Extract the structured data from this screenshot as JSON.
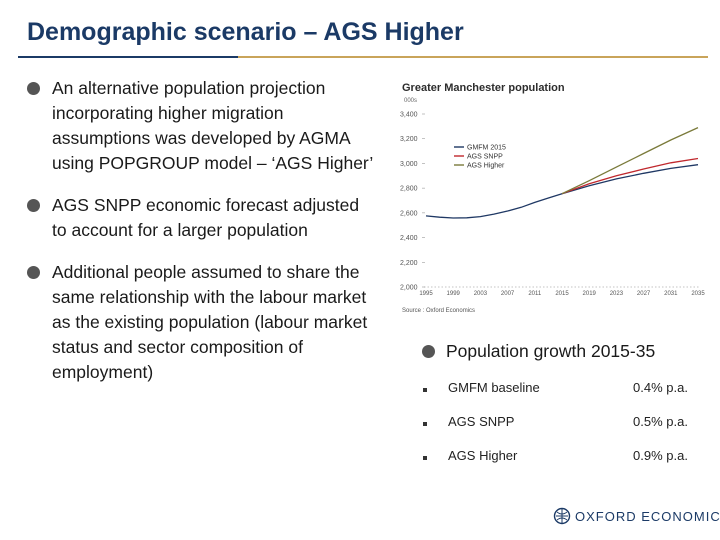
{
  "slide": {
    "title": "Demographic scenario – AGS Higher",
    "bullets": [
      "An alternative population projection incorporating higher migration assumptions was developed by AGMA using POPGROUP model – ‘AGS Higher’",
      "AGS SNPP economic forecast adjusted to account for a larger population",
      "Additional people assumed to share the same relationship with the labour market as the existing population (labour market status and sector composition of employment)"
    ]
  },
  "growth": {
    "heading": "Population growth 2015-35",
    "rows": [
      {
        "label": "GMFM baseline",
        "value": "0.4% p.a."
      },
      {
        "label": "AGS SNPP",
        "value": "0.5% p.a."
      },
      {
        "label": "AGS Higher",
        "value": "0.9% p.a."
      }
    ]
  },
  "logo": {
    "text": "OXFORD ECONOMICS",
    "icon": "oxford-economics-logo"
  },
  "colors": {
    "title": "#1b3a66",
    "rule_gold": "#c9a45a"
  },
  "chart_data": {
    "type": "line",
    "title": "Greater Manchester population",
    "ylabel": "000s",
    "source": "Source : Oxford Economics",
    "ylim": [
      2000,
      3400
    ],
    "yticks": [
      2000,
      2200,
      2400,
      2600,
      2800,
      3000,
      3200,
      3400
    ],
    "ytick_labels": [
      "2,000",
      "2,200",
      "2,400",
      "2,600",
      "2,800",
      "3,000",
      "3,200",
      "3,400"
    ],
    "xlim": [
      1995,
      2035
    ],
    "xticks": [
      1995,
      1999,
      2003,
      2007,
      2011,
      2015,
      2019,
      2023,
      2027,
      2031,
      2035
    ],
    "grid": false,
    "legend": "top-left",
    "series": [
      {
        "name": "GMFM 2015",
        "color": "#1f3864",
        "x": [
          1995,
          1997,
          1999,
          2001,
          2003,
          2005,
          2007,
          2009,
          2011,
          2013,
          2015,
          2019,
          2023,
          2027,
          2031,
          2035
        ],
        "values": [
          2575,
          2565,
          2558,
          2560,
          2570,
          2590,
          2615,
          2645,
          2685,
          2720,
          2755,
          2820,
          2875,
          2920,
          2960,
          2990
        ]
      },
      {
        "name": "AGS SNPP",
        "color": "#c0282d",
        "x": [
          2015,
          2019,
          2023,
          2027,
          2031,
          2035
        ],
        "values": [
          2755,
          2835,
          2900,
          2955,
          3005,
          3040
        ]
      },
      {
        "name": "AGS Higher",
        "color": "#7a7a3a",
        "x": [
          2015,
          2019,
          2023,
          2027,
          2031,
          2035
        ],
        "values": [
          2755,
          2860,
          2970,
          3080,
          3190,
          3290
        ]
      }
    ]
  }
}
